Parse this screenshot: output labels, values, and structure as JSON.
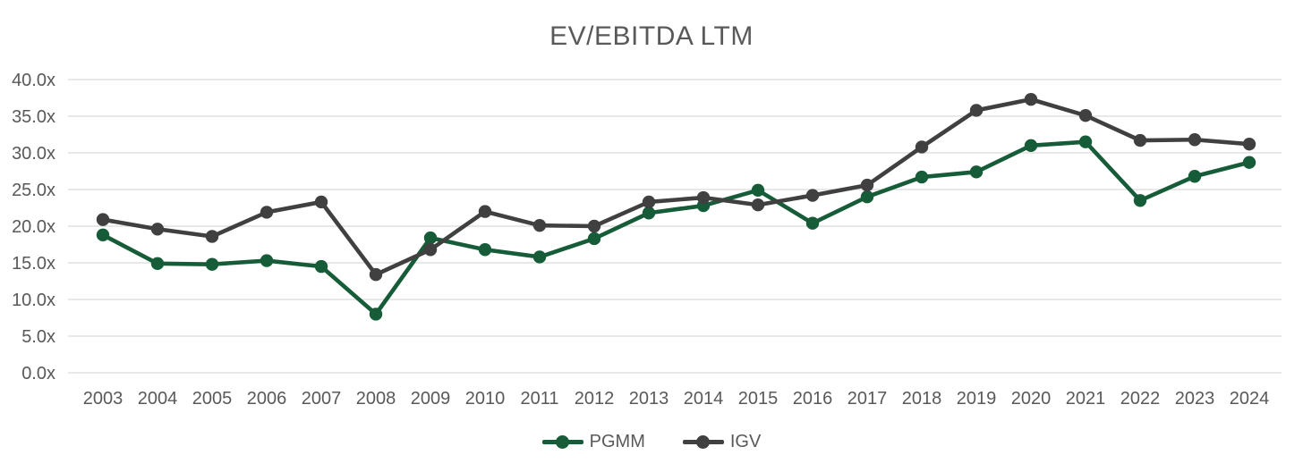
{
  "page": {
    "background": "#FFFFFF"
  },
  "colors": {
    "gridline": "#D9D9D9",
    "axis_text": "#595959",
    "title_text": "#595959",
    "pgmm_green": "#175C39",
    "igv_gray": "#404040"
  },
  "chart_data": {
    "type": "line",
    "title": "EV/EBITDA LTM",
    "xlabel": "",
    "ylabel": "",
    "categories": [
      "2003",
      "2004",
      "2005",
      "2006",
      "2007",
      "2008",
      "2009",
      "2010",
      "2011",
      "2012",
      "2013",
      "2014",
      "2015",
      "2016",
      "2017",
      "2018",
      "2019",
      "2020",
      "2021",
      "2022",
      "2023",
      "2024"
    ],
    "series": [
      {
        "name": "PGMM",
        "color": "#175C39",
        "values": [
          18.8,
          14.9,
          14.8,
          15.3,
          14.5,
          8.0,
          18.4,
          16.8,
          15.8,
          18.3,
          21.8,
          22.8,
          24.9,
          20.4,
          24.0,
          26.7,
          27.4,
          31.0,
          31.5,
          23.5,
          26.8,
          28.7
        ]
      },
      {
        "name": "IGV",
        "color": "#404040",
        "values": [
          20.9,
          19.6,
          18.6,
          21.9,
          23.3,
          13.4,
          16.8,
          22.0,
          20.1,
          20.0,
          23.3,
          23.9,
          22.9,
          24.2,
          25.6,
          30.8,
          35.8,
          37.3,
          35.1,
          31.7,
          31.8,
          31.2
        ]
      }
    ],
    "ylim": [
      0,
      40
    ],
    "y_ticks": [
      {
        "value": 0,
        "label": "0.0x"
      },
      {
        "value": 5,
        "label": "5.0x"
      },
      {
        "value": 10,
        "label": "10.0x"
      },
      {
        "value": 15,
        "label": "15.0x"
      },
      {
        "value": 20,
        "label": "20.0x"
      },
      {
        "value": 25,
        "label": "25.0x"
      },
      {
        "value": 30,
        "label": "30.0x"
      },
      {
        "value": 35,
        "label": "35.0x"
      },
      {
        "value": 40,
        "label": "40.0x"
      }
    ],
    "grid": "horizontal",
    "legend_position": "bottom",
    "value_suffix": "x"
  }
}
